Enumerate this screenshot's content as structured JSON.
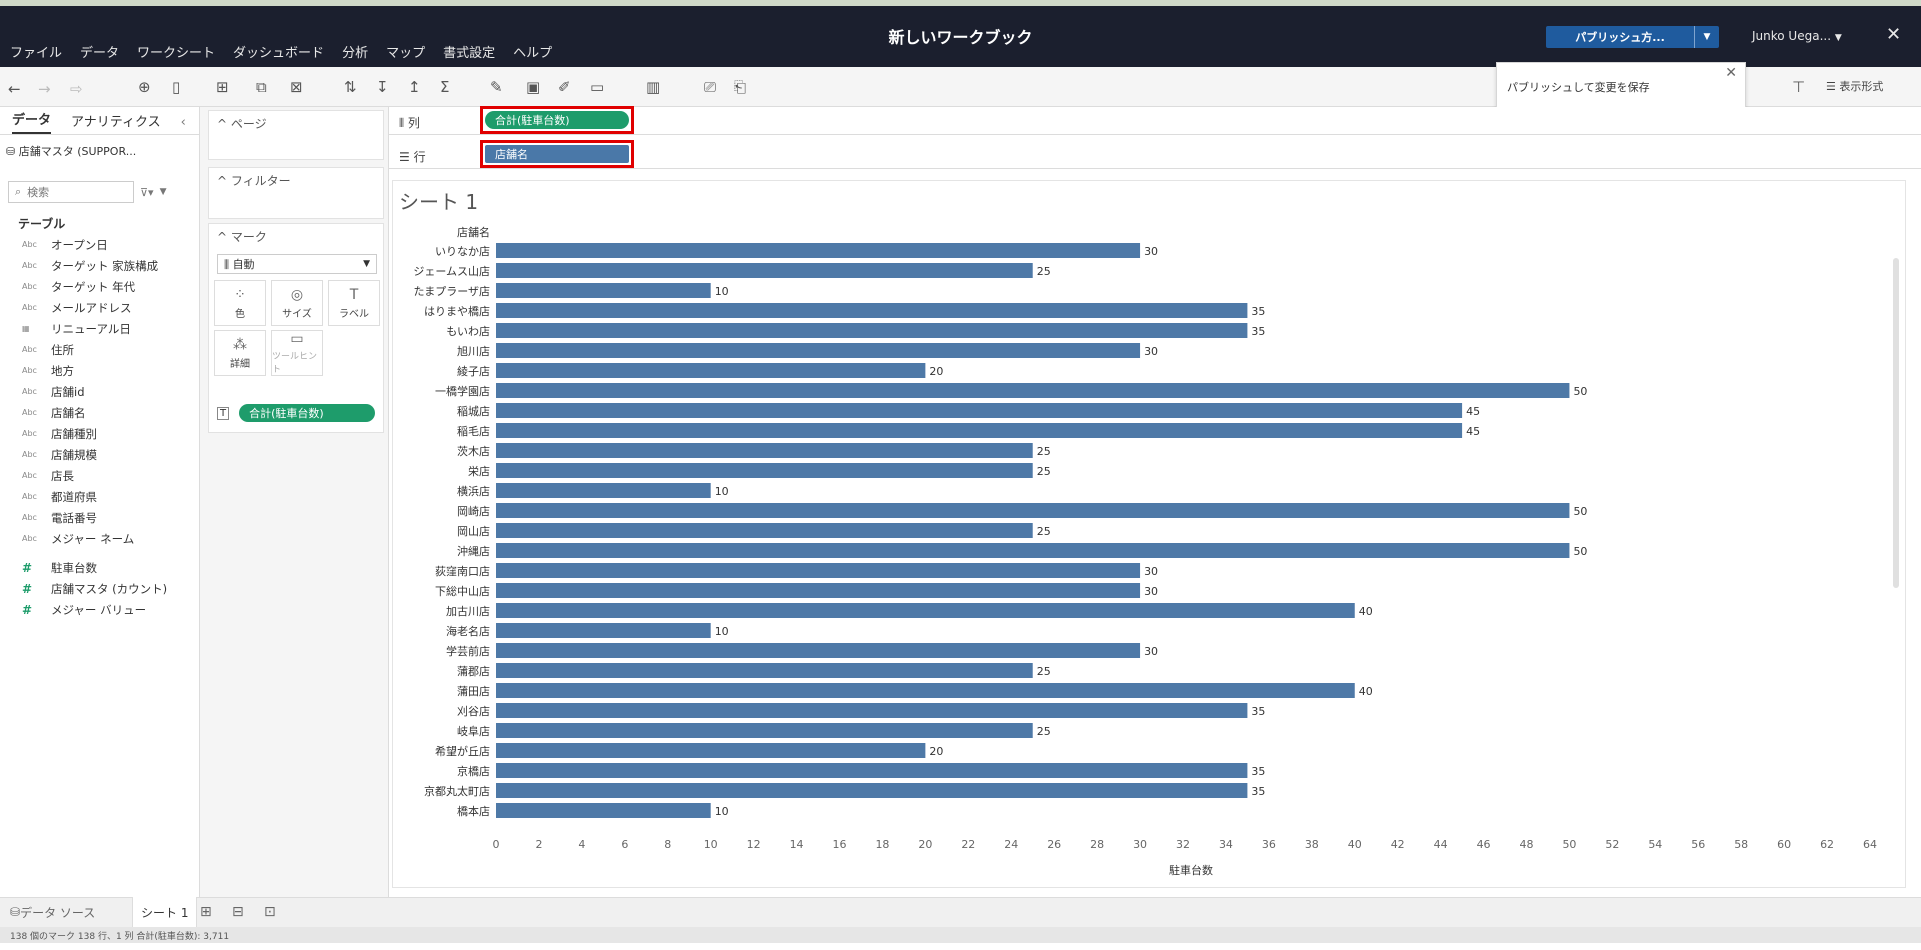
{
  "window": {
    "title": "新しいワークブック"
  },
  "menu": [
    "ファイル",
    "データ",
    "ワークシート",
    "ダッシュボード",
    "分析",
    "マップ",
    "書式設定",
    "ヘルプ"
  ],
  "publish": {
    "label": "パブリッシュ方...",
    "tooltip": "パブリッシュして変更を保存"
  },
  "user": {
    "name": "Junko Uega..."
  },
  "toolbar_right": {
    "show_me": "表示形式"
  },
  "left_pane": {
    "tabs": [
      "データ",
      "アナリティクス"
    ],
    "datasource": "店舗マスタ (SUPPOR...",
    "search_placeholder": "検索",
    "section_title": "テーブル",
    "dimensions": [
      {
        "type": "Abc",
        "name": "オープン日"
      },
      {
        "type": "Abc",
        "name": "ターゲット 家族構成"
      },
      {
        "type": "Abc",
        "name": "ターゲット 年代"
      },
      {
        "type": "Abc",
        "name": "メールアドレス"
      },
      {
        "type": "date",
        "name": "リニューアル日"
      },
      {
        "type": "Abc",
        "name": "住所"
      },
      {
        "type": "Abc",
        "name": "地方"
      },
      {
        "type": "Abc",
        "name": "店舗id"
      },
      {
        "type": "Abc",
        "name": "店舗名"
      },
      {
        "type": "Abc",
        "name": "店舗種別"
      },
      {
        "type": "Abc",
        "name": "店舗規模"
      },
      {
        "type": "Abc",
        "name": "店長"
      },
      {
        "type": "Abc",
        "name": "都道府県"
      },
      {
        "type": "Abc",
        "name": "電話番号"
      },
      {
        "type": "Abc",
        "name": "メジャー ネーム"
      }
    ],
    "measures": [
      "駐車台数",
      "店舗マスタ (カウント)",
      "メジャー バリュー"
    ]
  },
  "cards": {
    "pages": "ページ",
    "filters": "フィルター",
    "marks": "マーク",
    "mark_type": "自動",
    "mark_buttons": [
      "色",
      "サイズ",
      "ラベル",
      "詳細",
      "ツールヒント"
    ],
    "mark_pill": "合計(駐車台数)"
  },
  "shelves": {
    "columns_label": "列",
    "columns_pill": "合計(駐車台数)",
    "rows_label": "行",
    "rows_pill": "店舗名"
  },
  "sheet": {
    "title": "シート 1"
  },
  "chart_data": {
    "type": "bar",
    "orientation": "horizontal",
    "row_header": "店舗名",
    "xlabel": "駐車台数",
    "xlim": [
      0,
      64
    ],
    "xticks": [
      0,
      2,
      4,
      6,
      8,
      10,
      12,
      14,
      16,
      18,
      20,
      22,
      24,
      26,
      28,
      30,
      32,
      34,
      36,
      38,
      40,
      42,
      44,
      46,
      48,
      50,
      52,
      54,
      56,
      58,
      60,
      62,
      64
    ],
    "color": "#4e79a7",
    "categories": [
      "いりなか店",
      "ジェームス山店",
      "たまプラーザ店",
      "はりまや橋店",
      "もいわ店",
      "旭川店",
      "綾子店",
      "一橋学園店",
      "稲城店",
      "稲毛店",
      "茨木店",
      "栄店",
      "横浜店",
      "岡崎店",
      "岡山店",
      "沖縄店",
      "荻窪南口店",
      "下総中山店",
      "加古川店",
      "海老名店",
      "学芸前店",
      "蒲郡店",
      "蒲田店",
      "刈谷店",
      "岐阜店",
      "希望が丘店",
      "京橋店",
      "京都丸太町店",
      "橋本店"
    ],
    "values": [
      30,
      25,
      10,
      35,
      35,
      30,
      20,
      50,
      45,
      45,
      25,
      25,
      10,
      50,
      25,
      50,
      30,
      30,
      40,
      10,
      30,
      25,
      40,
      35,
      25,
      20,
      35,
      35,
      10
    ]
  },
  "bottom": {
    "datasource_tab": "データ ソース",
    "sheet_tab": "シート 1",
    "status": "138 個のマーク   138 行、1 列    合計(駐車台数): 3,711"
  }
}
